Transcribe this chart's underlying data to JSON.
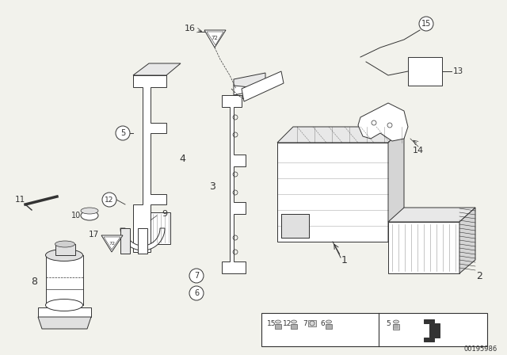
{
  "bg_color": "#f2f2ec",
  "line_color": "#333333",
  "ref_number": "00195986",
  "fig_width": 6.4,
  "fig_height": 4.48,
  "dpi": 100
}
